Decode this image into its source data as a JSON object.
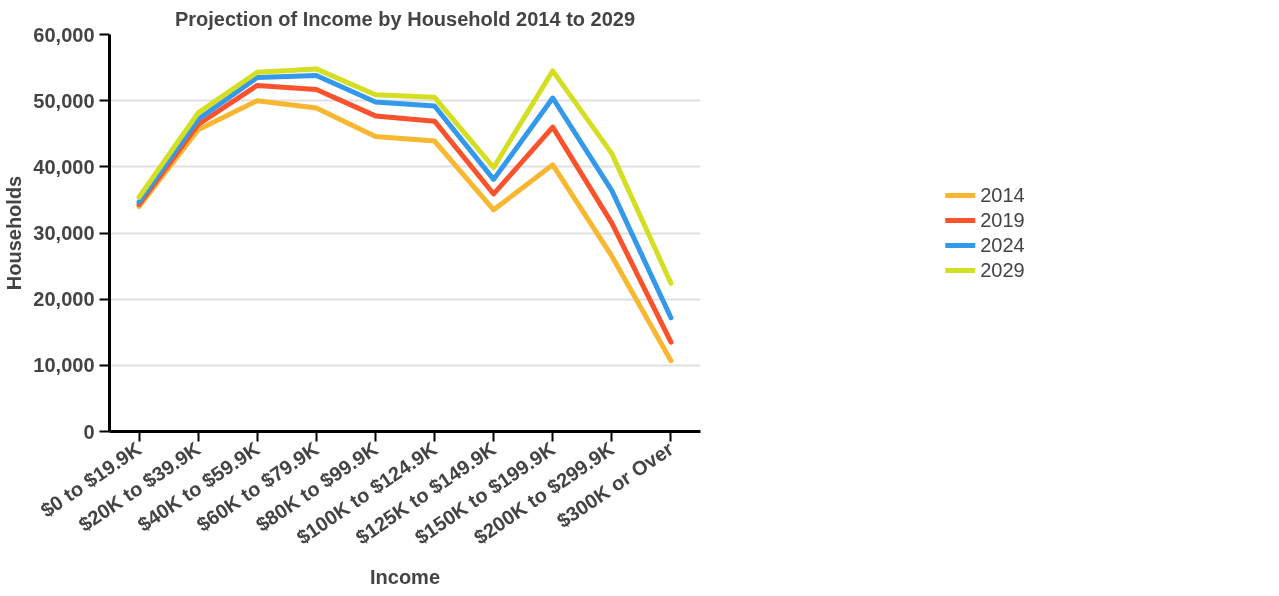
{
  "chart_data": {
    "type": "line",
    "title": "Projection of Income by Household 2014 to 2029",
    "xlabel": "Income",
    "ylabel": "Households",
    "categories": [
      "$0 to $19.9K",
      "$20K to $39.9K",
      "$40K to $59.9K",
      "$60K to $79.9K",
      "$80K to $99.9K",
      "$100K to $124.9K",
      "$125K to $149.9K",
      "$150K to $199.9K",
      "$200K to $299.9K",
      "$300K or Over"
    ],
    "series": [
      {
        "name": "2014",
        "color": "#f7b731",
        "values": [
          34000,
          45600,
          50000,
          48900,
          44600,
          43900,
          33500,
          40300,
          26500,
          10700
        ]
      },
      {
        "name": "2019",
        "color": "#f9522c",
        "values": [
          34300,
          46400,
          52300,
          51700,
          47700,
          46900,
          35900,
          46000,
          31500,
          13500
        ]
      },
      {
        "name": "2024",
        "color": "#3498eb",
        "values": [
          34700,
          47200,
          53500,
          53800,
          49800,
          49200,
          38100,
          50400,
          36400,
          17200
        ]
      },
      {
        "name": "2029",
        "color": "#d4de22",
        "values": [
          35400,
          48150,
          54300,
          54800,
          50900,
          50500,
          39900,
          54500,
          42000,
          22400
        ]
      }
    ],
    "ylim": [
      0,
      60000
    ],
    "yticks": [
      0,
      {
        "value": 10000,
        "label": "10,000"
      },
      {
        "value": 20000,
        "label": "20,000"
      },
      {
        "value": 30000,
        "label": "30,000"
      },
      {
        "value": 40000,
        "label": "40,000"
      },
      {
        "value": 50000,
        "label": "50,000"
      },
      {
        "value": 60000,
        "label": "60,000"
      }
    ],
    "grid": "y",
    "legend": "right",
    "marker": "none",
    "line_style": "solid"
  }
}
